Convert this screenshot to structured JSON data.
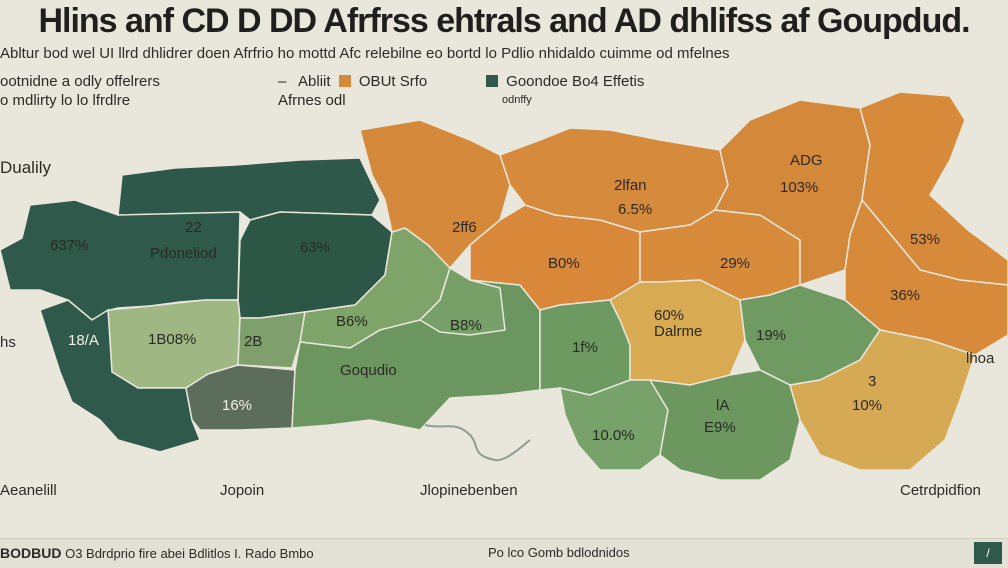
{
  "header": {
    "title": "Hlins anf CD D DD Afrfrss ehtrals and AD dhlifss af Goupdud.",
    "subtitle": "Abltur bod wel UI llrd dhlidrer doen Afrfrio ho mottd Afc relebilne eo bortd lo Pdlio nhidaldo cuimme od mfelnes"
  },
  "legend": {
    "left_line1": "ootnidne a odly offelrers",
    "left_line2": "o mdlirty lo lo lfrdlre",
    "mid_line1": "Abliit",
    "mid_item": "OBUt Srfo",
    "mid_line2": "Afrnes odl",
    "right_item": "Goondoe Bo4 Effetis",
    "right_sub": "odnffy",
    "colors": {
      "dark": "#2f5a4b",
      "orange": "#d5893a",
      "green": "#6f9a62",
      "yellow": "#d8ab52"
    }
  },
  "map": {
    "side_labels": {
      "top_left": "Dualily",
      "left": "hs",
      "right": "lhoa",
      "bottom_1": "Aeanelill",
      "bottom_2": "Jopoin",
      "bottom_3": "Jlopinebenben",
      "bottom_4": "Cetrdpidfion"
    },
    "regions": [
      {
        "name": "west-far",
        "label": "637%"
      },
      {
        "name": "west-center",
        "label": "22"
      },
      {
        "name": "west-center-sub",
        "label": "Pdoneliod"
      },
      {
        "name": "west-right",
        "label": "63%"
      },
      {
        "name": "west-south",
        "label": "1B08%"
      },
      {
        "name": "west-southwest",
        "label": "18/A"
      },
      {
        "name": "west-small",
        "label": "16%"
      },
      {
        "name": "center-a",
        "label": "2B"
      },
      {
        "name": "center-b",
        "label": "B6%"
      },
      {
        "name": "center-c",
        "label": "Goqudio"
      },
      {
        "name": "center-d",
        "label": "B8%"
      },
      {
        "name": "orange-1",
        "label": "2ff6"
      },
      {
        "name": "orange-2",
        "label": "B0%"
      },
      {
        "name": "orange-3",
        "label": "2lfan"
      },
      {
        "name": "orange-3-sub",
        "label": "6.5%"
      },
      {
        "name": "orange-4",
        "label": "29%"
      },
      {
        "name": "orange-5",
        "label": "ADG"
      },
      {
        "name": "orange-5-sub",
        "label": "103%"
      },
      {
        "name": "orange-6",
        "label": "53%"
      },
      {
        "name": "orange-7",
        "label": "36%"
      },
      {
        "name": "green-c1",
        "label": "1f%"
      },
      {
        "name": "yellow-1",
        "label": "60%"
      },
      {
        "name": "yellow-1-sub",
        "label": "Dalrme"
      },
      {
        "name": "green-e1",
        "label": "19%"
      },
      {
        "name": "green-s1",
        "label": "10.0%"
      },
      {
        "name": "green-s2",
        "label": "lA"
      },
      {
        "name": "green-s2-sub",
        "label": "E9%"
      },
      {
        "name": "yellow-2",
        "label": "3"
      },
      {
        "name": "yellow-2-sub",
        "label": "10%"
      }
    ]
  },
  "footer": {
    "left_code": "BODBUD",
    "left_text": "O3 Bdrdprio fire abei Bdlitlos I. Rado Bmbo",
    "right_text": "Po lco Gomb bdlodnidos",
    "corner_label": "/"
  }
}
